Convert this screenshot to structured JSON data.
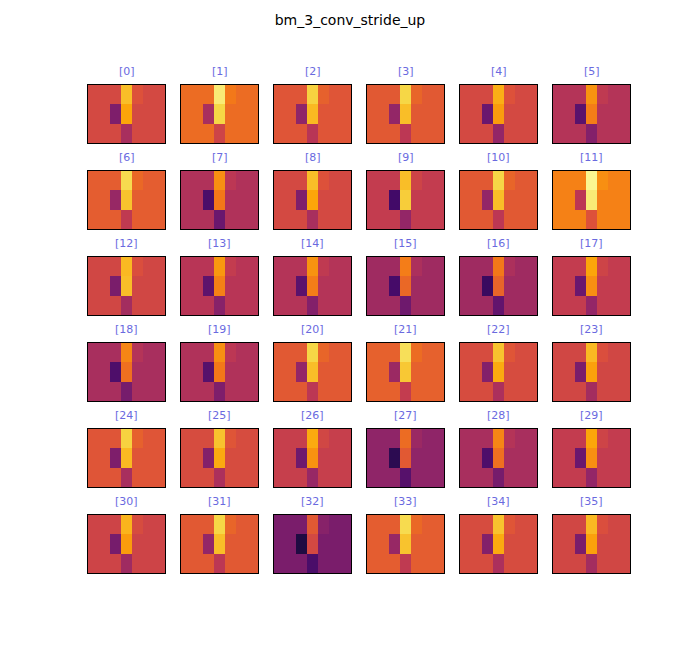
{
  "chart_data": {
    "type": "heatmap",
    "title": "bm_3_conv_stride_up",
    "color": "inferno",
    "zlim": [
      0,
      1
    ],
    "tick_labels": false,
    "panels": [
      {
        "label": "[0]",
        "cells": [
          [
            0.57,
            0.57,
            0.57,
            0.85,
            0.6,
            0.57,
            0.57
          ],
          [
            0.57,
            0.57,
            0.35,
            0.8,
            0.57,
            0.57,
            0.57
          ],
          [
            0.57,
            0.57,
            0.57,
            0.45,
            0.57,
            0.57,
            0.57
          ]
        ]
      },
      {
        "label": "[1]",
        "cells": [
          [
            0.67,
            0.67,
            0.67,
            0.95,
            0.7,
            0.67,
            0.67
          ],
          [
            0.67,
            0.67,
            0.45,
            0.9,
            0.67,
            0.67,
            0.67
          ],
          [
            0.67,
            0.67,
            0.67,
            0.55,
            0.67,
            0.67,
            0.67
          ]
        ]
      },
      {
        "label": "[2]",
        "cells": [
          [
            0.61,
            0.61,
            0.61,
            0.89,
            0.64,
            0.61,
            0.61
          ],
          [
            0.61,
            0.61,
            0.39,
            0.84,
            0.61,
            0.61,
            0.61
          ],
          [
            0.61,
            0.61,
            0.61,
            0.49,
            0.61,
            0.61,
            0.61
          ]
        ]
      },
      {
        "label": "[3]",
        "cells": [
          [
            0.62,
            0.62,
            0.62,
            0.9,
            0.65,
            0.62,
            0.62
          ],
          [
            0.62,
            0.62,
            0.4,
            0.85,
            0.62,
            0.62,
            0.62
          ],
          [
            0.62,
            0.62,
            0.62,
            0.5,
            0.62,
            0.62,
            0.62
          ]
        ]
      },
      {
        "label": "[4]",
        "cells": [
          [
            0.57,
            0.57,
            0.57,
            0.82,
            0.6,
            0.57,
            0.57
          ],
          [
            0.57,
            0.57,
            0.3,
            0.78,
            0.57,
            0.57,
            0.57
          ],
          [
            0.57,
            0.57,
            0.57,
            0.4,
            0.57,
            0.57,
            0.57
          ]
        ]
      },
      {
        "label": "[5]",
        "cells": [
          [
            0.48,
            0.48,
            0.48,
            0.76,
            0.51,
            0.48,
            0.48
          ],
          [
            0.48,
            0.48,
            0.26,
            0.71,
            0.48,
            0.48,
            0.48
          ],
          [
            0.48,
            0.48,
            0.48,
            0.36,
            0.48,
            0.48,
            0.48
          ]
        ]
      },
      {
        "label": "[6]",
        "cells": [
          [
            0.63,
            0.63,
            0.63,
            0.91,
            0.66,
            0.63,
            0.63
          ],
          [
            0.63,
            0.63,
            0.41,
            0.86,
            0.63,
            0.63,
            0.63
          ],
          [
            0.63,
            0.63,
            0.63,
            0.51,
            0.63,
            0.63,
            0.63
          ]
        ]
      },
      {
        "label": "[7]",
        "cells": [
          [
            0.47,
            0.47,
            0.47,
            0.75,
            0.5,
            0.47,
            0.47
          ],
          [
            0.47,
            0.47,
            0.22,
            0.7,
            0.47,
            0.47,
            0.47
          ],
          [
            0.47,
            0.47,
            0.47,
            0.3,
            0.47,
            0.47,
            0.47
          ]
        ]
      },
      {
        "label": "[8]",
        "cells": [
          [
            0.57,
            0.57,
            0.57,
            0.85,
            0.6,
            0.57,
            0.57
          ],
          [
            0.57,
            0.57,
            0.35,
            0.8,
            0.57,
            0.57,
            0.57
          ],
          [
            0.57,
            0.57,
            0.57,
            0.45,
            0.57,
            0.57,
            0.57
          ]
        ]
      },
      {
        "label": "[9]",
        "cells": [
          [
            0.52,
            0.52,
            0.52,
            0.85,
            0.55,
            0.52,
            0.52
          ],
          [
            0.52,
            0.52,
            0.2,
            0.88,
            0.52,
            0.52,
            0.52
          ],
          [
            0.52,
            0.52,
            0.52,
            0.4,
            0.52,
            0.52,
            0.52
          ]
        ]
      },
      {
        "label": "[10]",
        "cells": [
          [
            0.62,
            0.62,
            0.62,
            0.9,
            0.65,
            0.62,
            0.62
          ],
          [
            0.62,
            0.62,
            0.4,
            0.85,
            0.62,
            0.62,
            0.62
          ],
          [
            0.62,
            0.62,
            0.62,
            0.5,
            0.62,
            0.62,
            0.62
          ]
        ]
      },
      {
        "label": "[11]",
        "cells": [
          [
            0.72,
            0.72,
            0.72,
            0.98,
            0.75,
            0.72,
            0.72
          ],
          [
            0.72,
            0.72,
            0.5,
            0.95,
            0.72,
            0.72,
            0.72
          ],
          [
            0.72,
            0.72,
            0.72,
            0.6,
            0.72,
            0.72,
            0.72
          ]
        ]
      },
      {
        "label": "[12]",
        "cells": [
          [
            0.56,
            0.56,
            0.56,
            0.84,
            0.59,
            0.56,
            0.56
          ],
          [
            0.56,
            0.56,
            0.34,
            0.85,
            0.56,
            0.56,
            0.56
          ],
          [
            0.56,
            0.56,
            0.56,
            0.44,
            0.56,
            0.56,
            0.56
          ]
        ]
      },
      {
        "label": "[13]",
        "cells": [
          [
            0.49,
            0.49,
            0.49,
            0.77,
            0.52,
            0.49,
            0.49
          ],
          [
            0.49,
            0.49,
            0.27,
            0.72,
            0.49,
            0.49,
            0.49
          ],
          [
            0.49,
            0.49,
            0.49,
            0.37,
            0.49,
            0.49,
            0.49
          ]
        ]
      },
      {
        "label": "[14]",
        "cells": [
          [
            0.48,
            0.48,
            0.48,
            0.76,
            0.51,
            0.48,
            0.48
          ],
          [
            0.48,
            0.48,
            0.26,
            0.71,
            0.48,
            0.48,
            0.48
          ],
          [
            0.48,
            0.48,
            0.48,
            0.36,
            0.48,
            0.48,
            0.48
          ]
        ]
      },
      {
        "label": "[15]",
        "cells": [
          [
            0.43,
            0.43,
            0.43,
            0.71,
            0.46,
            0.43,
            0.43
          ],
          [
            0.43,
            0.43,
            0.21,
            0.66,
            0.43,
            0.43,
            0.43
          ],
          [
            0.43,
            0.43,
            0.43,
            0.31,
            0.43,
            0.43,
            0.43
          ]
        ]
      },
      {
        "label": "[16]",
        "cells": [
          [
            0.43,
            0.43,
            0.43,
            0.7,
            0.46,
            0.43,
            0.43
          ],
          [
            0.43,
            0.43,
            0.18,
            0.65,
            0.43,
            0.43,
            0.43
          ],
          [
            0.43,
            0.43,
            0.43,
            0.28,
            0.43,
            0.43,
            0.43
          ]
        ]
      },
      {
        "label": "[17]",
        "cells": [
          [
            0.52,
            0.52,
            0.52,
            0.8,
            0.55,
            0.52,
            0.52
          ],
          [
            0.52,
            0.52,
            0.3,
            0.75,
            0.52,
            0.52,
            0.52
          ],
          [
            0.52,
            0.52,
            0.52,
            0.4,
            0.52,
            0.52,
            0.52
          ]
        ]
      },
      {
        "label": "[18]",
        "cells": [
          [
            0.45,
            0.45,
            0.45,
            0.73,
            0.48,
            0.45,
            0.45
          ],
          [
            0.45,
            0.45,
            0.23,
            0.68,
            0.45,
            0.45,
            0.45
          ],
          [
            0.45,
            0.45,
            0.45,
            0.33,
            0.45,
            0.45,
            0.45
          ]
        ]
      },
      {
        "label": "[19]",
        "cells": [
          [
            0.47,
            0.47,
            0.47,
            0.75,
            0.5,
            0.47,
            0.47
          ],
          [
            0.47,
            0.47,
            0.25,
            0.7,
            0.47,
            0.47,
            0.47
          ],
          [
            0.47,
            0.47,
            0.47,
            0.35,
            0.47,
            0.47,
            0.47
          ]
        ]
      },
      {
        "label": "[20]",
        "cells": [
          [
            0.62,
            0.62,
            0.62,
            0.9,
            0.65,
            0.62,
            0.62
          ],
          [
            0.62,
            0.62,
            0.4,
            0.85,
            0.62,
            0.62,
            0.62
          ],
          [
            0.62,
            0.62,
            0.62,
            0.5,
            0.62,
            0.62,
            0.62
          ]
        ]
      },
      {
        "label": "[21]",
        "cells": [
          [
            0.64,
            0.64,
            0.64,
            0.92,
            0.67,
            0.64,
            0.64
          ],
          [
            0.64,
            0.64,
            0.42,
            0.87,
            0.64,
            0.64,
            0.64
          ],
          [
            0.64,
            0.64,
            0.64,
            0.52,
            0.64,
            0.64,
            0.64
          ]
        ]
      },
      {
        "label": "[22]",
        "cells": [
          [
            0.58,
            0.58,
            0.58,
            0.86,
            0.61,
            0.58,
            0.58
          ],
          [
            0.58,
            0.58,
            0.36,
            0.81,
            0.58,
            0.58,
            0.58
          ],
          [
            0.58,
            0.58,
            0.58,
            0.46,
            0.58,
            0.58,
            0.58
          ]
        ]
      },
      {
        "label": "[23]",
        "cells": [
          [
            0.56,
            0.56,
            0.56,
            0.84,
            0.59,
            0.56,
            0.56
          ],
          [
            0.56,
            0.56,
            0.34,
            0.79,
            0.56,
            0.56,
            0.56
          ],
          [
            0.56,
            0.56,
            0.56,
            0.44,
            0.56,
            0.56,
            0.56
          ]
        ]
      },
      {
        "label": "[24]",
        "cells": [
          [
            0.61,
            0.61,
            0.61,
            0.89,
            0.64,
            0.61,
            0.61
          ],
          [
            0.61,
            0.61,
            0.35,
            0.84,
            0.61,
            0.61,
            0.61
          ],
          [
            0.61,
            0.61,
            0.61,
            0.45,
            0.61,
            0.61,
            0.61
          ]
        ]
      },
      {
        "label": "[25]",
        "cells": [
          [
            0.58,
            0.58,
            0.58,
            0.86,
            0.61,
            0.58,
            0.58
          ],
          [
            0.58,
            0.58,
            0.36,
            0.81,
            0.58,
            0.58,
            0.58
          ],
          [
            0.58,
            0.58,
            0.58,
            0.46,
            0.58,
            0.58,
            0.58
          ]
        ]
      },
      {
        "label": "[26]",
        "cells": [
          [
            0.53,
            0.53,
            0.53,
            0.81,
            0.56,
            0.53,
            0.53
          ],
          [
            0.53,
            0.53,
            0.31,
            0.76,
            0.53,
            0.53,
            0.53
          ],
          [
            0.53,
            0.53,
            0.53,
            0.41,
            0.53,
            0.53,
            0.53
          ]
        ]
      },
      {
        "label": "[27]",
        "cells": [
          [
            0.39,
            0.39,
            0.39,
            0.67,
            0.42,
            0.39,
            0.39
          ],
          [
            0.39,
            0.39,
            0.15,
            0.62,
            0.39,
            0.39,
            0.39
          ],
          [
            0.39,
            0.39,
            0.39,
            0.25,
            0.39,
            0.39,
            0.39
          ]
        ]
      },
      {
        "label": "[28]",
        "cells": [
          [
            0.45,
            0.45,
            0.45,
            0.73,
            0.48,
            0.45,
            0.45
          ],
          [
            0.45,
            0.45,
            0.23,
            0.68,
            0.45,
            0.45,
            0.45
          ],
          [
            0.45,
            0.45,
            0.45,
            0.33,
            0.45,
            0.45,
            0.45
          ]
        ]
      },
      {
        "label": "[29]",
        "cells": [
          [
            0.52,
            0.52,
            0.52,
            0.8,
            0.55,
            0.52,
            0.52
          ],
          [
            0.52,
            0.52,
            0.3,
            0.75,
            0.52,
            0.52,
            0.52
          ],
          [
            0.52,
            0.52,
            0.52,
            0.4,
            0.52,
            0.52,
            0.52
          ]
        ]
      },
      {
        "label": "[30]",
        "cells": [
          [
            0.55,
            0.55,
            0.55,
            0.83,
            0.58,
            0.55,
            0.55
          ],
          [
            0.55,
            0.55,
            0.33,
            0.78,
            0.55,
            0.55,
            0.55
          ],
          [
            0.55,
            0.55,
            0.55,
            0.43,
            0.55,
            0.55,
            0.55
          ]
        ]
      },
      {
        "label": "[31]",
        "cells": [
          [
            0.62,
            0.62,
            0.62,
            0.9,
            0.65,
            0.62,
            0.62
          ],
          [
            0.62,
            0.62,
            0.4,
            0.85,
            0.62,
            0.62,
            0.62
          ],
          [
            0.62,
            0.62,
            0.62,
            0.5,
            0.62,
            0.62,
            0.62
          ]
        ]
      },
      {
        "label": "[32]",
        "cells": [
          [
            0.34,
            0.34,
            0.34,
            0.62,
            0.37,
            0.34,
            0.34
          ],
          [
            0.34,
            0.34,
            0.12,
            0.57,
            0.34,
            0.34,
            0.34
          ],
          [
            0.34,
            0.34,
            0.34,
            0.22,
            0.34,
            0.34,
            0.34
          ]
        ]
      },
      {
        "label": "[33]",
        "cells": [
          [
            0.63,
            0.63,
            0.63,
            0.91,
            0.66,
            0.63,
            0.63
          ],
          [
            0.63,
            0.63,
            0.41,
            0.86,
            0.63,
            0.63,
            0.63
          ],
          [
            0.63,
            0.63,
            0.63,
            0.51,
            0.63,
            0.63,
            0.63
          ]
        ]
      },
      {
        "label": "[34]",
        "cells": [
          [
            0.58,
            0.58,
            0.58,
            0.86,
            0.61,
            0.58,
            0.58
          ],
          [
            0.58,
            0.58,
            0.36,
            0.81,
            0.58,
            0.58,
            0.58
          ],
          [
            0.58,
            0.58,
            0.58,
            0.46,
            0.58,
            0.58,
            0.58
          ]
        ]
      },
      {
        "label": "[35]",
        "cells": [
          [
            0.56,
            0.56,
            0.56,
            0.84,
            0.59,
            0.56,
            0.56
          ],
          [
            0.56,
            0.56,
            0.34,
            0.79,
            0.56,
            0.56,
            0.56
          ],
          [
            0.56,
            0.56,
            0.56,
            0.44,
            0.56,
            0.56,
            0.56
          ]
        ]
      }
    ]
  }
}
